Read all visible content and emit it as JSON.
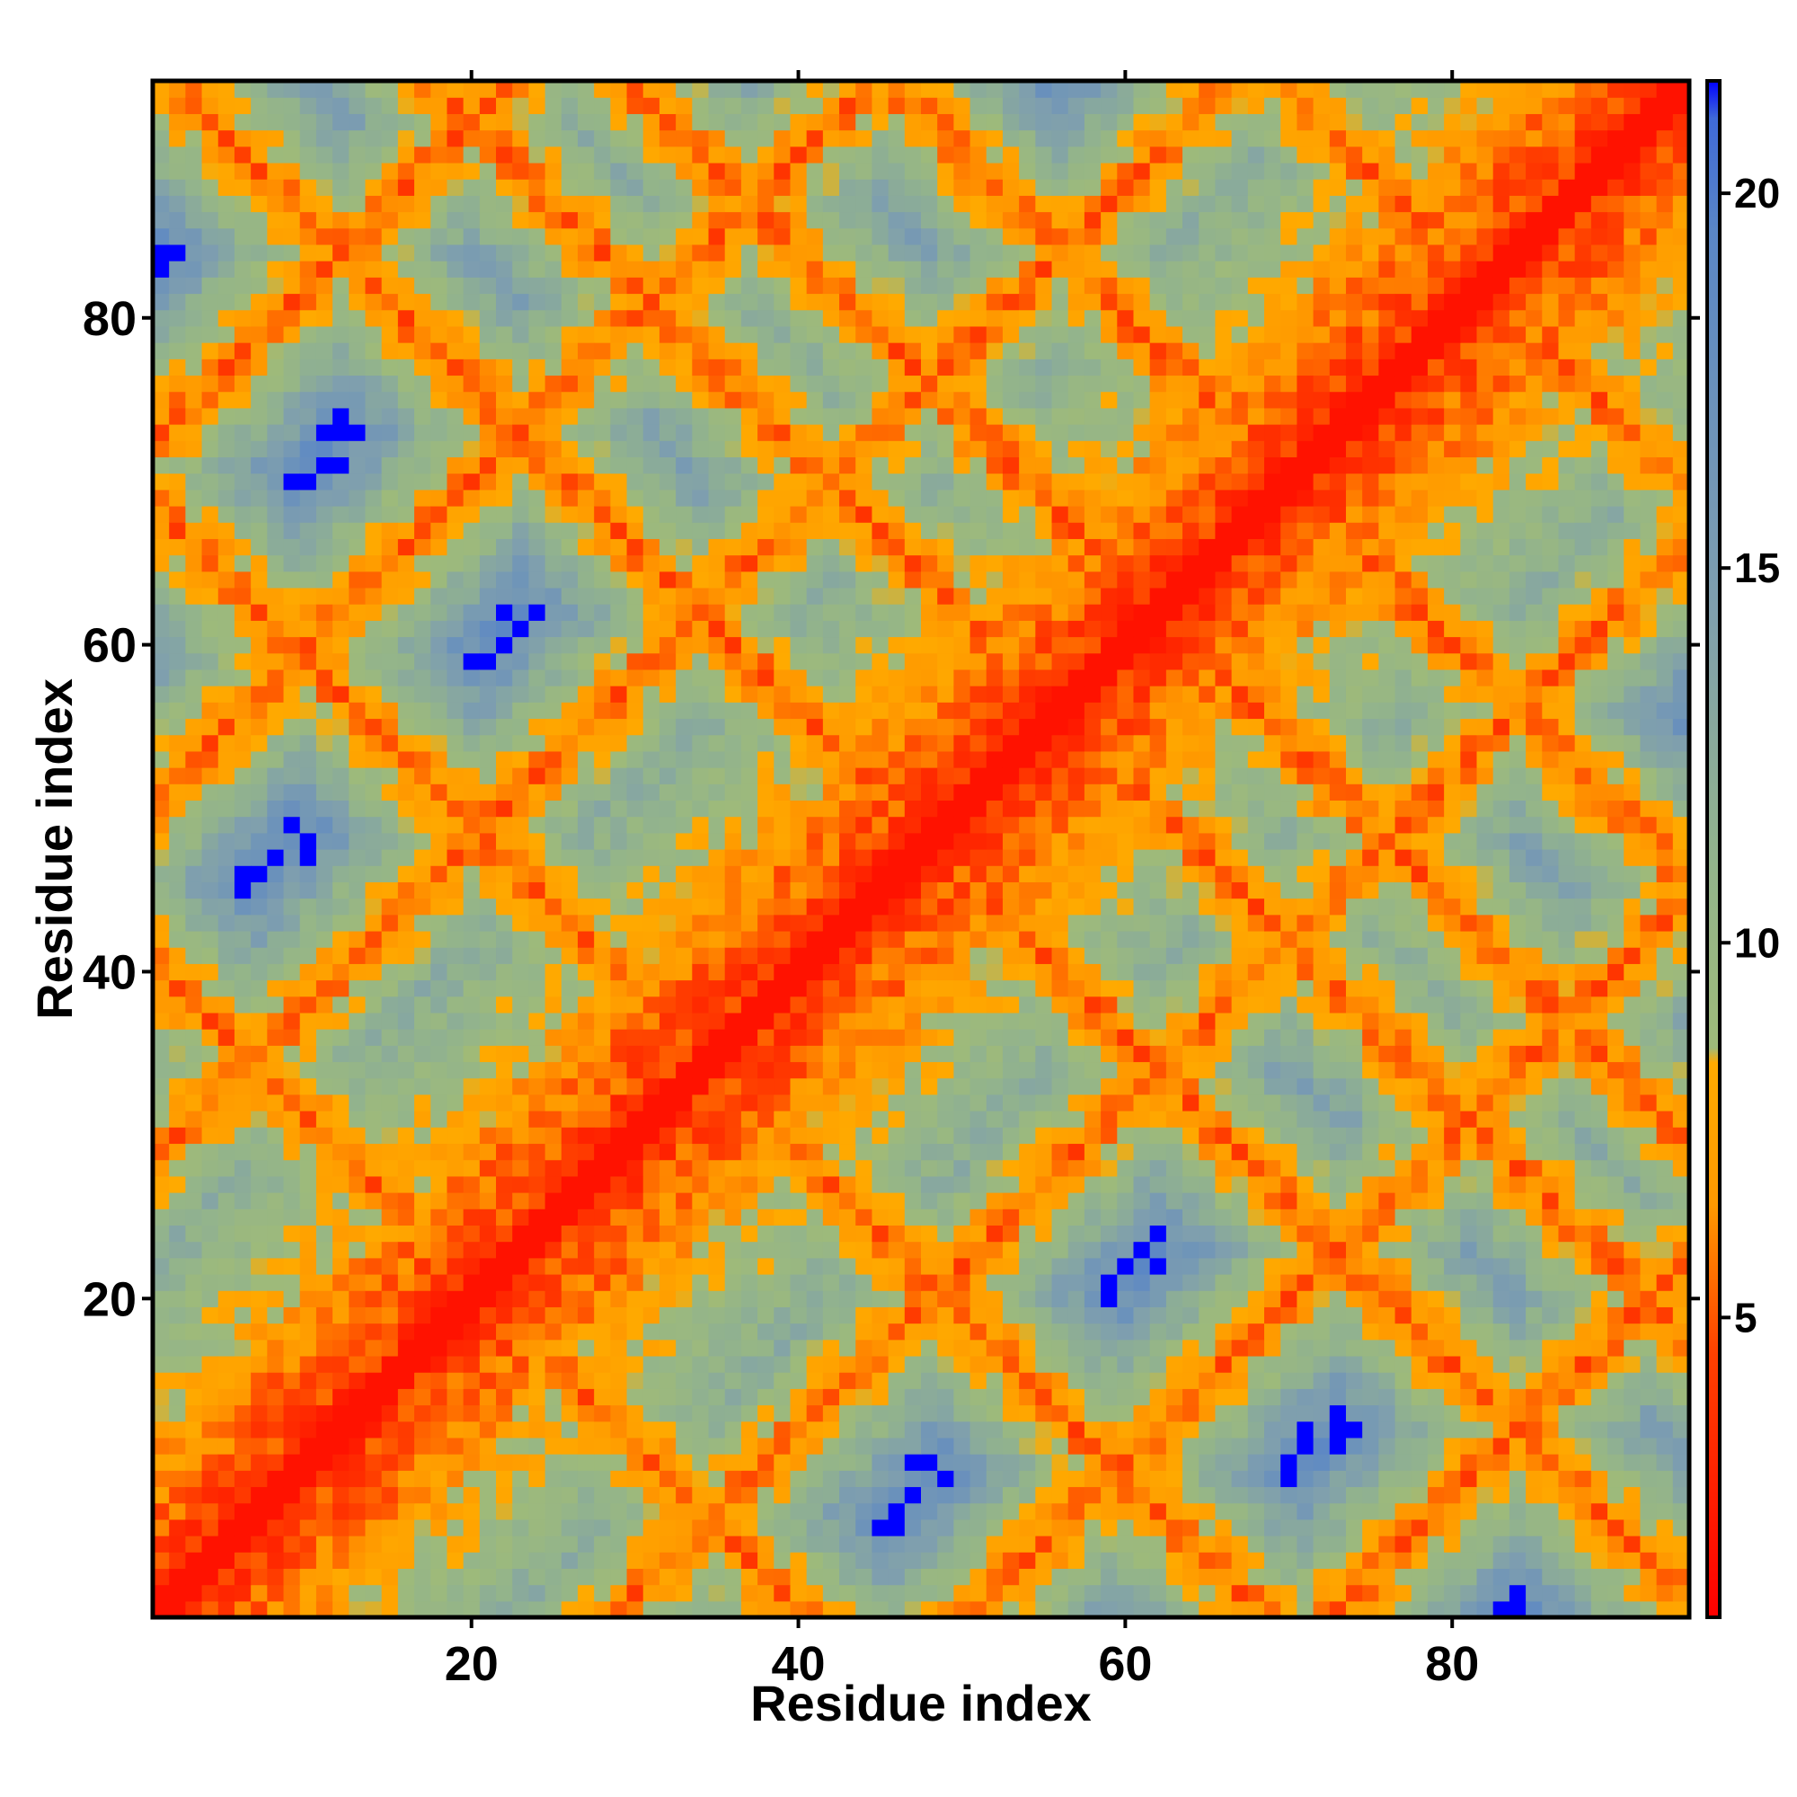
{
  "chart_data": {
    "type": "heatmap",
    "title": "",
    "xlabel": "Residue index",
    "ylabel": "Residue index",
    "n_residues": 94,
    "xlim": [
      0.5,
      94.5
    ],
    "ylim": [
      0.5,
      94.5
    ],
    "x_ticks": [
      {
        "value": 20,
        "label": "20"
      },
      {
        "value": 40,
        "label": "40"
      },
      {
        "value": 60,
        "label": "60"
      },
      {
        "value": 80,
        "label": "80"
      }
    ],
    "y_ticks": [
      {
        "value": 20,
        "label": "20"
      },
      {
        "value": 40,
        "label": "40"
      },
      {
        "value": 60,
        "label": "60"
      },
      {
        "value": 80,
        "label": "80"
      }
    ],
    "colorbar": {
      "range": [
        1.0,
        21.5
      ],
      "ticks": [
        {
          "value": 5,
          "label": "5"
        },
        {
          "value": 10,
          "label": "10"
        },
        {
          "value": 15,
          "label": "15"
        },
        {
          "value": 20,
          "label": "20"
        }
      ],
      "color_stops": [
        {
          "value": 1.0,
          "color": "#ff0000"
        },
        {
          "value": 4.5,
          "color": "#ff4000"
        },
        {
          "value": 6.5,
          "color": "#ff9900"
        },
        {
          "value": 8.4,
          "color": "#ffaa00"
        },
        {
          "value": 8.6,
          "color": "#9eba7a"
        },
        {
          "value": 11.0,
          "color": "#93b48b"
        },
        {
          "value": 14.5,
          "color": "#7f9fae"
        },
        {
          "value": 19.5,
          "color": "#5a86c6"
        },
        {
          "value": 21.0,
          "color": "#3f6ad8"
        },
        {
          "value": 21.5,
          "color": "#0000ff"
        }
      ],
      "saturated_color": "#0000ff"
    },
    "contact_bands": [
      {
        "kind": "diagonal",
        "offset": 0
      },
      {
        "kind": "parallel",
        "offset": -28
      },
      {
        "kind": "parallel",
        "offset": 28
      },
      {
        "kind": "parallel",
        "offset": 50
      },
      {
        "kind": "parallel",
        "offset": -50
      },
      {
        "kind": "parallel",
        "offset": 72
      },
      {
        "kind": "parallel",
        "offset": -72
      },
      {
        "kind": "antiparallel",
        "sum": 41
      },
      {
        "kind": "antiparallel",
        "sum": 69
      },
      {
        "kind": "antiparallel",
        "sum": 96
      },
      {
        "kind": "antiparallel",
        "sum": 112
      },
      {
        "kind": "antiparallel",
        "sum": 124
      },
      {
        "kind": "antiparallel",
        "sum": 140
      },
      {
        "kind": "antiparallel",
        "sum": 164
      }
    ],
    "legend": "none",
    "grid": false
  }
}
